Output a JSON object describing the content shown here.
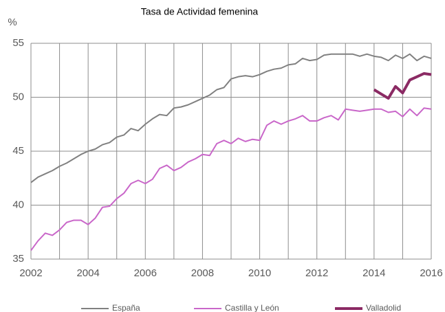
{
  "chart_data": {
    "type": "line",
    "title": "Tasa de Actividad femenina",
    "y_label": "%",
    "x": [
      2002,
      2002.25,
      2002.5,
      2002.75,
      2003,
      2003.25,
      2003.5,
      2003.75,
      2004,
      2004.25,
      2004.5,
      2004.75,
      2005,
      2005.25,
      2005.5,
      2005.75,
      2006,
      2006.25,
      2006.5,
      2006.75,
      2007,
      2007.25,
      2007.5,
      2007.75,
      2008,
      2008.25,
      2008.5,
      2008.75,
      2009,
      2009.25,
      2009.5,
      2009.75,
      2010,
      2010.25,
      2010.5,
      2010.75,
      2011,
      2011.25,
      2011.5,
      2011.75,
      2012,
      2012.25,
      2012.5,
      2012.75,
      2013,
      2013.25,
      2013.5,
      2013.75,
      2014,
      2014.25,
      2014.5,
      2014.75,
      2015,
      2015.25,
      2015.5,
      2015.75,
      2016
    ],
    "series": [
      {
        "name": "España",
        "color": "#808080",
        "width": 2,
        "values": [
          42.1,
          42.6,
          42.9,
          43.2,
          43.6,
          43.9,
          44.3,
          44.7,
          45.0,
          45.2,
          45.6,
          45.8,
          46.3,
          46.5,
          47.1,
          46.9,
          47.5,
          48.0,
          48.4,
          48.3,
          49.0,
          49.1,
          49.3,
          49.6,
          49.9,
          50.2,
          50.7,
          50.9,
          51.7,
          51.9,
          52.0,
          51.9,
          52.1,
          52.4,
          52.6,
          52.7,
          53.0,
          53.1,
          53.6,
          53.4,
          53.5,
          53.9,
          54.0,
          54.0,
          54.0,
          54.0,
          53.8,
          54.0,
          53.8,
          53.7,
          53.4,
          53.9,
          53.6,
          54.0,
          53.4,
          53.8,
          53.6
        ]
      },
      {
        "name": "Castilla y León",
        "color": "#c966c9",
        "width": 2,
        "values": [
          35.8,
          36.7,
          37.4,
          37.2,
          37.7,
          38.4,
          38.6,
          38.6,
          38.2,
          38.8,
          39.8,
          39.9,
          40.6,
          41.1,
          42.0,
          42.3,
          42.0,
          42.4,
          43.4,
          43.7,
          43.2,
          43.5,
          44.0,
          44.3,
          44.7,
          44.6,
          45.7,
          46.0,
          45.7,
          46.2,
          45.9,
          46.1,
          46.0,
          47.4,
          47.8,
          47.5,
          47.8,
          48.0,
          48.3,
          47.8,
          47.8,
          48.1,
          48.3,
          47.9,
          48.9,
          48.8,
          48.7,
          48.8,
          48.9,
          48.9,
          48.6,
          48.7,
          48.2,
          48.9,
          48.3,
          49.0,
          48.9
        ]
      },
      {
        "name": "Valladolid",
        "color": "#8b2a64",
        "width": 4,
        "values": [
          null,
          null,
          null,
          null,
          null,
          null,
          null,
          null,
          null,
          null,
          null,
          null,
          null,
          null,
          null,
          null,
          null,
          null,
          null,
          null,
          null,
          null,
          null,
          null,
          null,
          null,
          null,
          null,
          null,
          null,
          null,
          null,
          null,
          null,
          null,
          null,
          null,
          null,
          null,
          null,
          null,
          null,
          null,
          null,
          null,
          null,
          null,
          null,
          50.7,
          50.3,
          49.9,
          51.0,
          50.4,
          51.6,
          51.9,
          52.2,
          52.1
        ]
      }
    ],
    "xlim": [
      2002,
      2016
    ],
    "xticks": [
      2002,
      2004,
      2006,
      2008,
      2010,
      2012,
      2014,
      2016
    ],
    "minor_xticks": [
      2003,
      2005,
      2007,
      2009,
      2011,
      2013,
      2015
    ],
    "ylim": [
      35,
      55
    ],
    "yticks": [
      35,
      40,
      45,
      50,
      55
    ],
    "grid": true,
    "legend": "bottom"
  }
}
